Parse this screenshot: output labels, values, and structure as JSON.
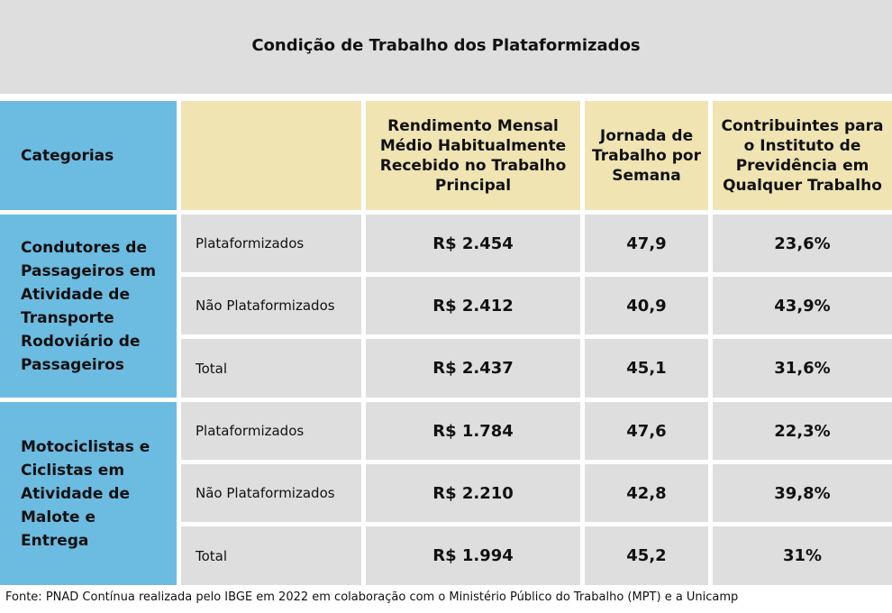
{
  "title": "Condição de Trabalho dos Plataformizados",
  "headers": {
    "categorias": "Categorias",
    "rendimento": "Rendimento Mensal Médio Habitualmente Recebido no Trabalho Principal",
    "jornada": "Jornada de Trabalho por Semana",
    "contribuintes": "Contribuintes para o Instituto de Previdência em Qualquer Trabalho"
  },
  "groups": [
    {
      "name": "Condutores de Passageiros em Atividade de Transporte Rodoviário de Passageiros",
      "rows": [
        {
          "label": "Plataformizados",
          "rendimento": "R$ 2.454",
          "jornada": "47,9",
          "contribuintes": "23,6%"
        },
        {
          "label": "Não Plataformizados",
          "rendimento": "R$ 2.412",
          "jornada": "40,9",
          "contribuintes": "43,9%"
        },
        {
          "label": "Total",
          "rendimento": "R$ 2.437",
          "jornada": "45,1",
          "contribuintes": "31,6%"
        }
      ]
    },
    {
      "name": "Motociclistas e Ciclistas em Atividade de Malote e Entrega",
      "rows": [
        {
          "label": "Plataformizados",
          "rendimento": "R$ 1.784",
          "jornada": "47,6",
          "contribuintes": "22,3%"
        },
        {
          "label": "Não Plataformizados",
          "rendimento": "R$ 2.210",
          "jornada": "42,8",
          "contribuintes": "39,8%"
        },
        {
          "label": "Total",
          "rendimento": "R$ 1.994",
          "jornada": "45,2",
          "contribuintes": "31%"
        }
      ]
    }
  ],
  "footer": "Fonte: PNAD Contínua realizada pelo IBGE em 2022 em colaboração com o Ministério Público do Trabalho (MPT) e a Unicamp"
}
